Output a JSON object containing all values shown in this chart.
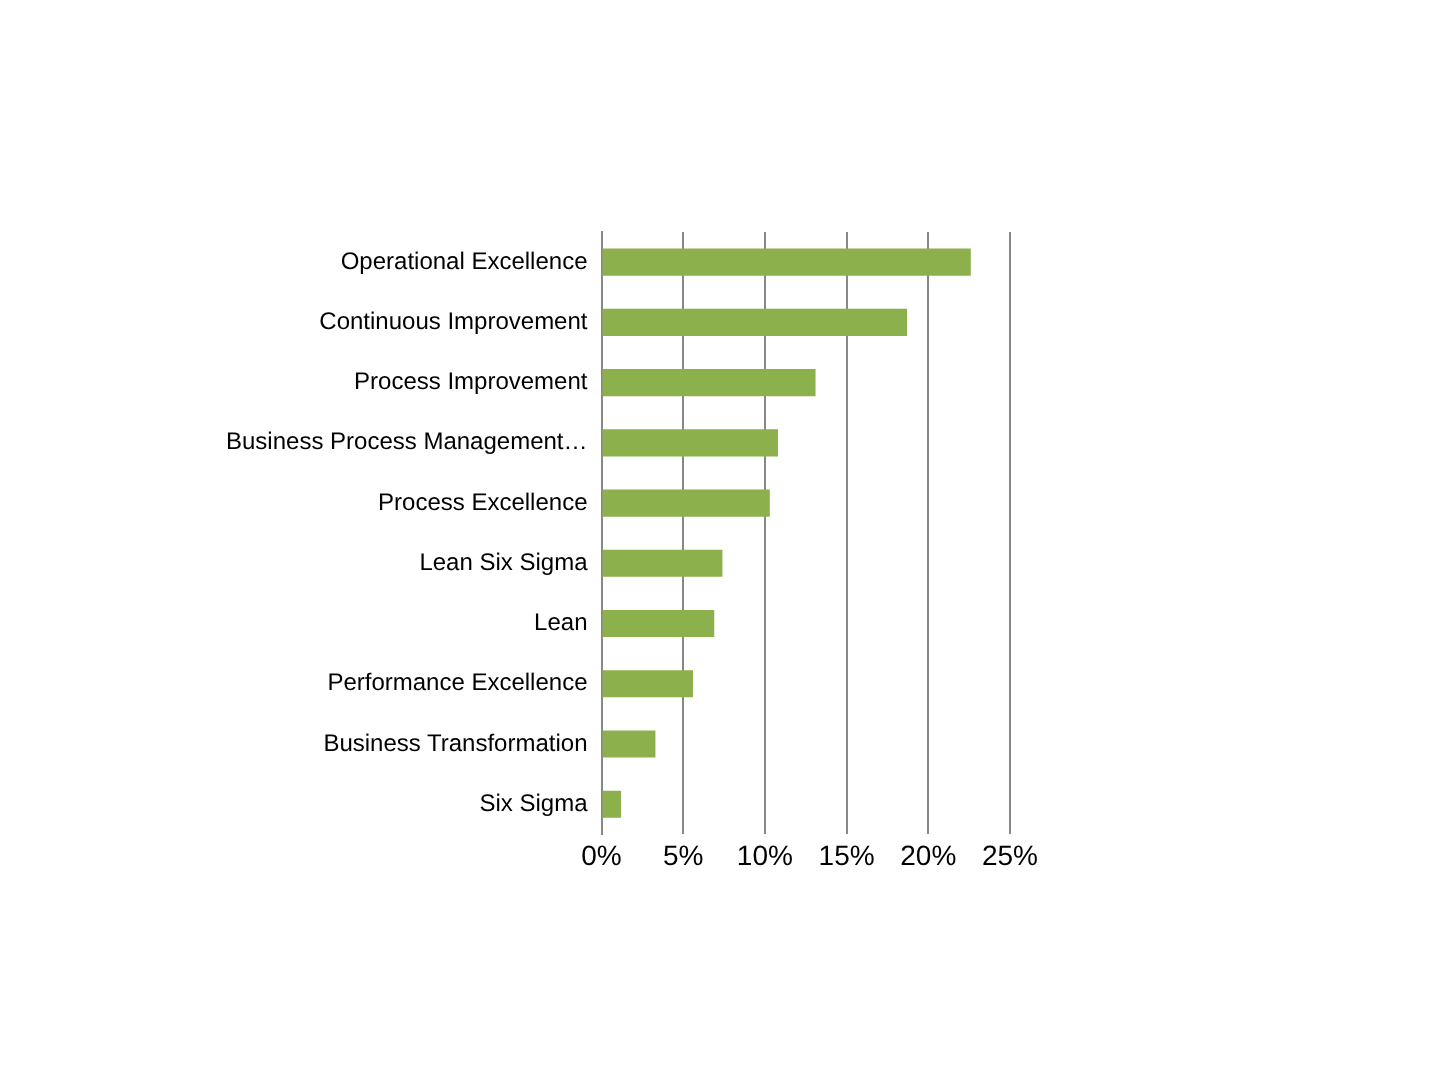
{
  "chart_data": {
    "type": "bar",
    "orientation": "horizontal",
    "categories": [
      "Operational Excellence",
      "Continuous Improvement",
      "Process Improvement",
      "Business Process Management…",
      "Process Excellence",
      "Lean Six Sigma",
      "Lean",
      "Performance Excellence",
      "Business Transformation",
      "Six Sigma"
    ],
    "values": [
      22.6,
      18.7,
      13.1,
      10.8,
      10.3,
      7.4,
      6.9,
      5.6,
      3.3,
      1.2
    ],
    "color": "#8bb04c",
    "xlim": [
      0,
      25
    ],
    "xticks": [
      {
        "value": 0,
        "label": "0%"
      },
      {
        "value": 5,
        "label": "5%"
      },
      {
        "value": 10,
        "label": "10%"
      },
      {
        "value": 15,
        "label": "15%"
      },
      {
        "value": 20,
        "label": "20%"
      },
      {
        "value": 25,
        "label": "25%"
      }
    ],
    "grid": "x"
  }
}
